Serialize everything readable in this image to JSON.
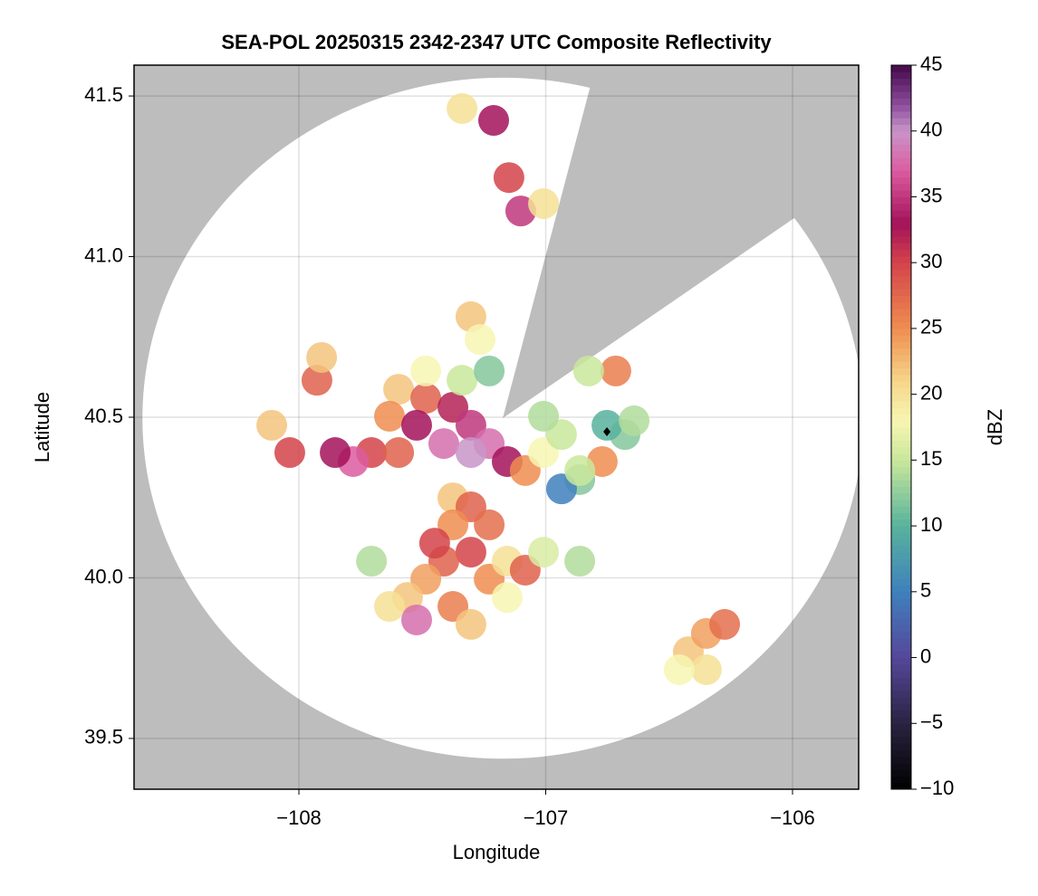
{
  "chart_data": {
    "type": "radar",
    "title": "SEA-POL 20250315 2342-2347 UTC Composite Reflectivity",
    "xlabel": "Longitude",
    "ylabel": "Latitude",
    "colorbar_label": "dBZ",
    "xlim": [
      -108.668,
      -105.732
    ],
    "ylim": [
      39.342,
      41.596
    ],
    "xticks": [
      {
        "value": -108,
        "label": "−108"
      },
      {
        "value": -107,
        "label": "−107"
      },
      {
        "value": -106,
        "label": "−106"
      }
    ],
    "yticks": [
      39.5,
      {
        "value": 40,
        "label": "40.0"
      },
      40.5,
      {
        "value": 41,
        "label": "41.0"
      },
      41.5
    ],
    "clim": [
      -10,
      45
    ],
    "cticks": [
      {
        "value": -10,
        "label": "−10"
      },
      {
        "value": -5,
        "label": "−5"
      },
      0,
      5,
      10,
      15,
      20,
      25,
      30,
      35,
      40,
      45
    ],
    "colormap": [
      [
        -10,
        "#000000"
      ],
      [
        -5,
        "#2a2340"
      ],
      [
        0,
        "#55479a"
      ],
      [
        5,
        "#3f80bd"
      ],
      [
        10,
        "#58b29c"
      ],
      [
        15,
        "#c9e79b"
      ],
      [
        18,
        "#f7f6b2"
      ],
      [
        21,
        "#f6d68a"
      ],
      [
        25,
        "#ef8d50"
      ],
      [
        30,
        "#d4434a"
      ],
      [
        33,
        "#a3125a"
      ],
      [
        37,
        "#dc5ca0"
      ],
      [
        40,
        "#c895c8"
      ],
      [
        42,
        "#8c4d9c"
      ],
      [
        45,
        "#44084a"
      ]
    ],
    "background_color": "#bdbdbd",
    "coverage_color": "#ffffff",
    "grid": true,
    "coverage": {
      "center": [
        -107.174,
        40.497
      ],
      "radius": [
        1.46,
        1.06
      ],
      "blocked_azimuth": [
        14,
        54
      ]
    },
    "marker": {
      "lon": -106.752,
      "lat": 40.455,
      "color": "#000000"
    },
    "cells": {
      "lon": [
        -107.596,
        -107.486,
        -107.376,
        -107.303,
        -107.229,
        -107.156,
        -107.083,
        -107.009,
        -106.936,
        -107.633,
        -107.523,
        -107.413,
        -107.303,
        -107.706,
        -107.78,
        -107.853,
        -107.596,
        -107.486,
        -107.339,
        -107.229,
        -107.009,
        -106.862,
        -106.936,
        -107.376,
        -107.303,
        -107.376,
        -107.229,
        -107.303,
        -107.413,
        -107.229,
        -107.486,
        -107.56,
        -107.633,
        -107.523,
        -107.376,
        -107.303,
        -107.156,
        -107.083,
        -107.009,
        -107.45,
        -107.156,
        -106.862,
        -107.927,
        -107.908,
        -108.11,
        -108.037,
        -107.706,
        -107.339,
        -107.211,
        -107.149,
        -107.101,
        -107.009,
        -107.303,
        -107.266,
        -106.716,
        -106.826,
        -106.679,
        -106.752,
        -106.771,
        -106.862,
        -106.642,
        -106.422,
        -106.349,
        -106.275,
        -106.349,
        -106.459
      ],
      "lat": [
        40.587,
        40.559,
        40.531,
        40.475,
        40.418,
        40.362,
        40.334,
        40.39,
        40.446,
        40.503,
        40.475,
        40.418,
        40.39,
        40.39,
        40.362,
        40.39,
        40.39,
        40.644,
        40.615,
        40.644,
        40.503,
        40.306,
        40.277,
        40.249,
        40.221,
        40.165,
        40.165,
        40.08,
        40.052,
        39.996,
        39.996,
        39.939,
        39.911,
        39.869,
        39.911,
        39.855,
        40.052,
        40.024,
        40.08,
        40.108,
        39.939,
        40.052,
        40.615,
        40.686,
        40.475,
        40.39,
        40.052,
        41.461,
        41.424,
        41.246,
        41.142,
        41.165,
        40.813,
        40.742,
        40.644,
        40.644,
        40.446,
        40.475,
        40.362,
        40.334,
        40.489,
        39.77,
        39.827,
        39.855,
        39.714,
        39.714
      ],
      "dbz": [
        22,
        28,
        32,
        35,
        38,
        33,
        25,
        18,
        15,
        25,
        33,
        38,
        40,
        30,
        37,
        33,
        28,
        18,
        15,
        12,
        14,
        12,
        5,
        22,
        28,
        25,
        27,
        30,
        28,
        25,
        24,
        22,
        20,
        38,
        26,
        22,
        20,
        28,
        16,
        30,
        18,
        14,
        28,
        22,
        22,
        30,
        14,
        20,
        33,
        30,
        35,
        20,
        22,
        18,
        26,
        15,
        12,
        10,
        25,
        15,
        14,
        22,
        24,
        27,
        20,
        18
      ]
    }
  }
}
